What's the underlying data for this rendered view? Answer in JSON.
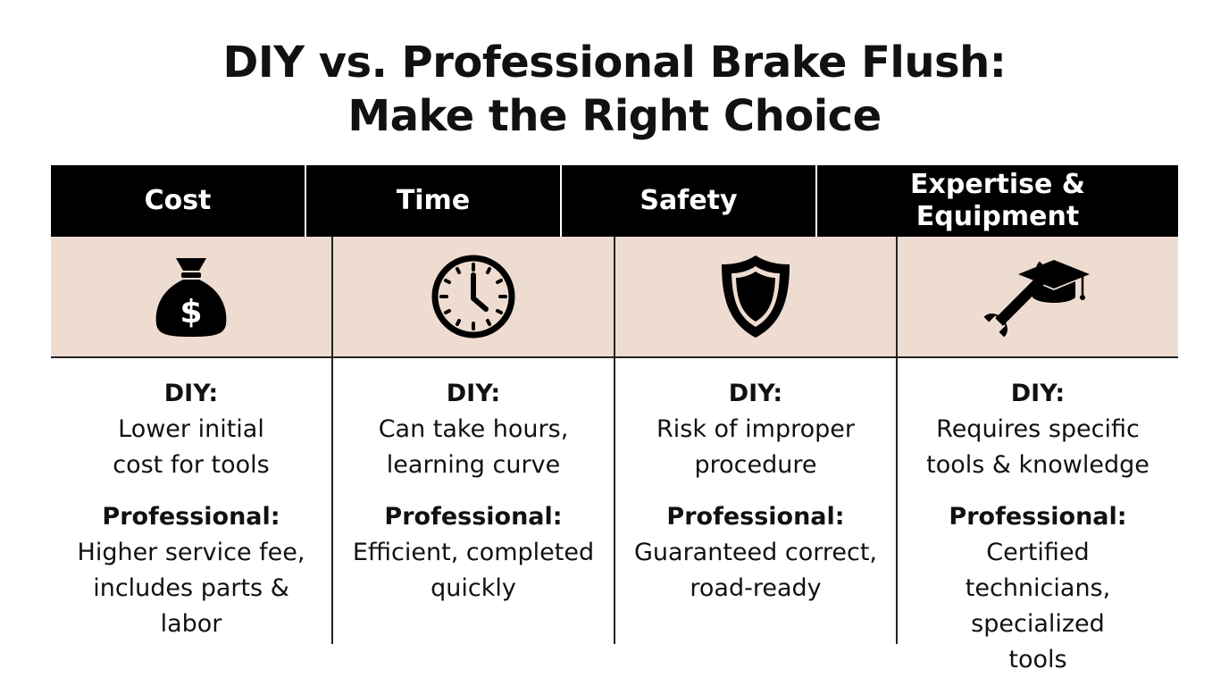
{
  "title": {
    "line1": "DIY vs. Professional Brake Flush:",
    "line2": "Make the Right Choice"
  },
  "colors": {
    "header_bg": "#000000",
    "icon_row_bg": "#eedcd0",
    "text": "#111111"
  },
  "columns": [
    {
      "header": "Cost",
      "icon": "money-bag-icon",
      "diy_label": "DIY:",
      "diy_text": "Lower initial cost for tools",
      "pro_label": "Professional:",
      "pro_text": "Higher service fee, includes parts & labor"
    },
    {
      "header": "Time",
      "icon": "clock-icon",
      "diy_label": "DIY:",
      "diy_text": "Can take hours, learning curve",
      "pro_label": "Professional:",
      "pro_text": "Efficient, completed quickly"
    },
    {
      "header": "Safety",
      "icon": "shield-icon",
      "diy_label": "DIY:",
      "diy_text": "Risk of improper procedure",
      "pro_label": "Professional:",
      "pro_text": "Guaranteed correct, road-ready"
    },
    {
      "header": "Expertise & Equipment",
      "icon": "wrench-graduation-cap-icon",
      "diy_label": "DIY:",
      "diy_text": "Requires specific tools & knowledge",
      "pro_label": "Professional:",
      "pro_text": "Certified technicians, specialized tools"
    }
  ]
}
